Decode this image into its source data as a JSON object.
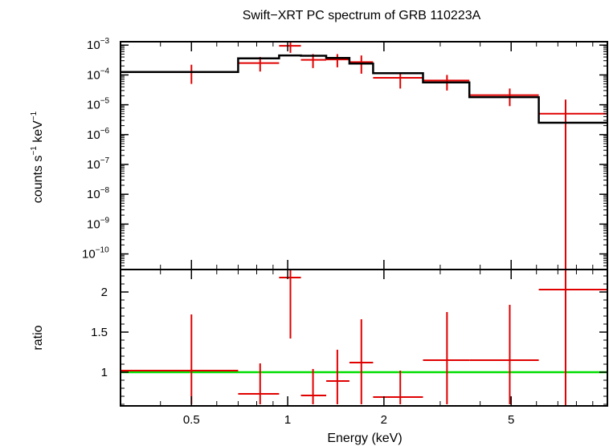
{
  "title": "Swift−XRT PC spectrum of GRB 110223A",
  "xlabel": "Energy (keV)",
  "colors": {
    "data": "#e00000",
    "model": "#000000",
    "unity": "#00dd00"
  },
  "chart_data": [
    {
      "type": "line",
      "panel": "spectrum",
      "ylabel_parts": [
        "counts s",
        "−1",
        " keV",
        "−1"
      ],
      "yscale": "log",
      "xscale": "log",
      "xlim": [
        0.3,
        10
      ],
      "ylim": [
        3e-11,
        0.0013
      ],
      "ytick_exponents": [
        "−3",
        "−4",
        "−5",
        "−6",
        "−7",
        "−8",
        "−9",
        "−10"
      ],
      "ytick_values": [
        0.001,
        0.0001,
        1e-05,
        1e-06,
        1e-07,
        1e-08,
        1e-09,
        1e-10
      ],
      "series": [
        {
          "role": "data",
          "points": [
            {
              "x": 0.5,
              "xlo": 0.3,
              "xhi": 0.7,
              "y": 0.000125,
              "ylo": 5e-05,
              "yhi": 0.00022
            },
            {
              "x": 0.82,
              "xlo": 0.7,
              "xhi": 0.94,
              "y": 0.00025,
              "ylo": 0.00013,
              "yhi": 0.0004
            },
            {
              "x": 1.02,
              "xlo": 0.94,
              "xhi": 1.1,
              "y": 0.00095,
              "ylo": 0.00055,
              "yhi": 0.0013
            },
            {
              "x": 1.2,
              "xlo": 1.1,
              "xhi": 1.32,
              "y": 0.00032,
              "ylo": 0.00017,
              "yhi": 0.0005
            },
            {
              "x": 1.43,
              "xlo": 1.32,
              "xhi": 1.56,
              "y": 0.00033,
              "ylo": 0.00018,
              "yhi": 0.0005
            },
            {
              "x": 1.7,
              "xlo": 1.56,
              "xhi": 1.85,
              "y": 0.00027,
              "ylo": 0.00011,
              "yhi": 0.00045
            },
            {
              "x": 2.25,
              "xlo": 1.85,
              "xhi": 2.65,
              "y": 8e-05,
              "ylo": 3.5e-05,
              "yhi": 0.00012
            },
            {
              "x": 3.15,
              "xlo": 2.65,
              "xhi": 3.7,
              "y": 6.5e-05,
              "ylo": 3e-05,
              "yhi": 0.0001
            },
            {
              "x": 4.95,
              "xlo": 3.7,
              "xhi": 6.1,
              "y": 2.1e-05,
              "ylo": 9e-06,
              "yhi": 3.5e-05
            },
            {
              "x": 7.4,
              "xlo": 6.1,
              "xhi": 10.0,
              "y": 5e-06,
              "ylo": 3e-11,
              "yhi": 1.5e-05
            }
          ]
        },
        {
          "role": "model",
          "steps": [
            {
              "xlo": 0.3,
              "xhi": 0.7,
              "y": 0.000125
            },
            {
              "xlo": 0.7,
              "xhi": 0.94,
              "y": 0.00036
            },
            {
              "xlo": 0.94,
              "xhi": 1.1,
              "y": 0.00045
            },
            {
              "xlo": 1.1,
              "xhi": 1.32,
              "y": 0.00044
            },
            {
              "xlo": 1.32,
              "xhi": 1.56,
              "y": 0.00037
            },
            {
              "xlo": 1.56,
              "xhi": 1.85,
              "y": 0.00024
            },
            {
              "xlo": 1.85,
              "xhi": 2.65,
              "y": 0.000115
            },
            {
              "xlo": 2.65,
              "xhi": 3.7,
              "y": 5.6e-05
            },
            {
              "xlo": 3.7,
              "xhi": 6.1,
              "y": 1.8e-05
            },
            {
              "xlo": 6.1,
              "xhi": 10.0,
              "y": 2.5e-06
            }
          ]
        }
      ]
    },
    {
      "type": "line",
      "panel": "ratio",
      "ylabel": "ratio",
      "yscale": "linear",
      "xscale": "log",
      "xlim": [
        0.3,
        10
      ],
      "ylim": [
        0.58,
        2.28
      ],
      "yticks": [
        "1",
        "1.5",
        "2"
      ],
      "ytick_values": [
        1,
        1.5,
        2
      ],
      "xticks": [
        "0.5",
        "1",
        "2",
        "5"
      ],
      "xtick_values": [
        0.5,
        1,
        2,
        5
      ],
      "unity_line": 1,
      "points": [
        {
          "x": 0.5,
          "xlo": 0.3,
          "xhi": 0.7,
          "y": 1.02,
          "ylo": 0.6,
          "yhi": 1.72
        },
        {
          "x": 0.82,
          "xlo": 0.7,
          "xhi": 0.94,
          "y": 0.73,
          "ylo": 0.6,
          "yhi": 1.11
        },
        {
          "x": 1.02,
          "xlo": 0.94,
          "xhi": 1.1,
          "y": 2.18,
          "ylo": 1.42,
          "yhi": 2.28
        },
        {
          "x": 1.2,
          "xlo": 1.1,
          "xhi": 1.32,
          "y": 0.71,
          "ylo": 0.6,
          "yhi": 1.04
        },
        {
          "x": 1.43,
          "xlo": 1.32,
          "xhi": 1.56,
          "y": 0.89,
          "ylo": 0.6,
          "yhi": 1.28
        },
        {
          "x": 1.7,
          "xlo": 1.56,
          "xhi": 1.85,
          "y": 1.12,
          "ylo": 0.6,
          "yhi": 1.66
        },
        {
          "x": 2.25,
          "xlo": 1.85,
          "xhi": 2.65,
          "y": 0.69,
          "ylo": 0.6,
          "yhi": 1.02
        },
        {
          "x": 3.15,
          "xlo": 2.65,
          "xhi": 3.7,
          "y": 1.15,
          "ylo": 0.6,
          "yhi": 1.75
        },
        {
          "x": 4.95,
          "xlo": 3.7,
          "xhi": 6.1,
          "y": 1.15,
          "ylo": 0.6,
          "yhi": 1.84
        },
        {
          "x": 7.4,
          "xlo": 6.1,
          "xhi": 10.0,
          "y": 2.03,
          "ylo": 0.58,
          "yhi": 2.28
        }
      ]
    }
  ]
}
